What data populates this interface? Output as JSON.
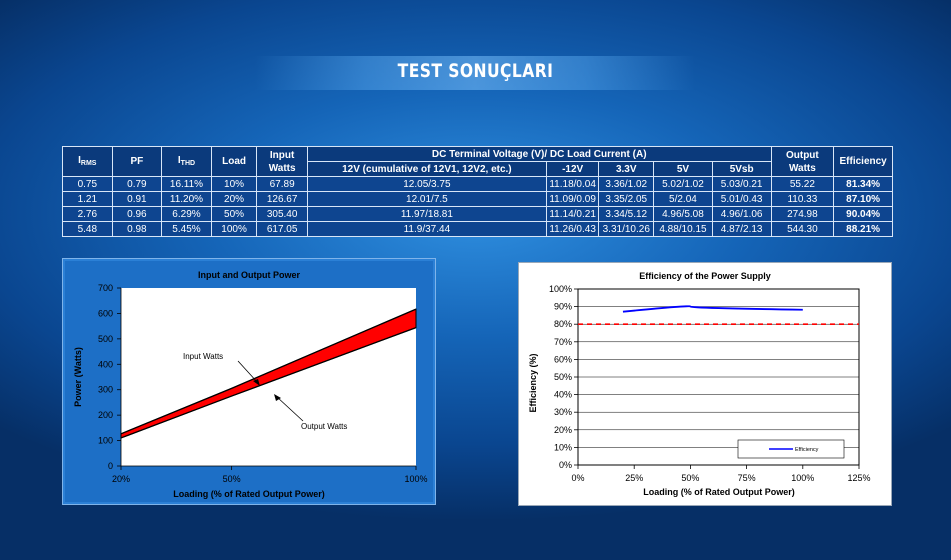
{
  "page": {
    "title": "TEST SONUÇLARI"
  },
  "table": {
    "headers": {
      "irms_main": "I",
      "irms_sub": "RMS",
      "pf": "PF",
      "ithd_main": "I",
      "ithd_sub": "THD",
      "load": "Load",
      "input_watts": "Input Watts",
      "dc_group": "DC Terminal Voltage (V)/ DC Load Current (A)",
      "v12": "12V (cumulative of 12V1, 12V2, etc.)",
      "vneg12": "-12V",
      "v33": "3.3V",
      "v5": "5V",
      "v5sb": "5Vsb",
      "output_watts": "Output Watts",
      "efficiency": "Efficiency"
    },
    "rows": [
      [
        "0.75",
        "0.79",
        "16.11%",
        "10%",
        "67.89",
        "12.05/3.75",
        "11.18/0.04",
        "3.36/1.02",
        "5.02/1.02",
        "5.03/0.21",
        "55.22",
        "81.34%"
      ],
      [
        "1.21",
        "0.91",
        "11.20%",
        "20%",
        "126.67",
        "12.01/7.5",
        "11.09/0.09",
        "3.35/2.05",
        "5/2.04",
        "5.01/0.43",
        "110.33",
        "87.10%"
      ],
      [
        "2.76",
        "0.96",
        "6.29%",
        "50%",
        "305.40",
        "11.97/18.81",
        "11.14/0.21",
        "3.34/5.12",
        "4.96/5.08",
        "4.96/1.06",
        "274.98",
        "90.04%"
      ],
      [
        "5.48",
        "0.98",
        "5.45%",
        "100%",
        "617.05",
        "11.9/37.44",
        "11.26/0.43",
        "3.31/10.26",
        "4.88/10.15",
        "4.87/2.13",
        "544.30",
        "88.21%"
      ]
    ]
  },
  "chart_data": [
    {
      "type": "area",
      "title": "Input and Output Power",
      "xlabel": "Loading (% of Rated Output Power)",
      "ylabel": "Power (Watts)",
      "x": [
        20,
        50,
        100
      ],
      "xticks": [
        "20%",
        "50%",
        "100%"
      ],
      "ylim": [
        0,
        700
      ],
      "yticks": [
        "0",
        "100",
        "200",
        "300",
        "400",
        "500",
        "600",
        "700"
      ],
      "series": [
        {
          "name": "Input Watts",
          "values": [
            126.67,
            305.4,
            617.05
          ]
        },
        {
          "name": "Output Watts",
          "values": [
            110.33,
            274.98,
            544.3
          ]
        }
      ],
      "annotations": [
        "Input Watts",
        "Output Watts"
      ],
      "fill_color": "#ff0000",
      "plot_background": "#ffffff"
    },
    {
      "type": "line",
      "title": "Efficiency of the Power Supply",
      "xlabel": "Loading (% of Rated Output Power)",
      "ylabel": "Efficiency (%)",
      "xlim": [
        0,
        125
      ],
      "xticks": [
        "0%",
        "25%",
        "50%",
        "75%",
        "100%",
        "125%"
      ],
      "ylim": [
        0,
        100
      ],
      "yticks": [
        "0%",
        "10%",
        "20%",
        "30%",
        "40%",
        "50%",
        "60%",
        "70%",
        "80%",
        "90%",
        "100%"
      ],
      "series": [
        {
          "name": "Efficiency",
          "x": [
            20,
            50,
            100
          ],
          "values": [
            87.1,
            90.04,
            88.21
          ],
          "color": "#0000ff"
        }
      ],
      "reference_line": {
        "y": 80,
        "color": "#ff0000",
        "style": "dashed"
      },
      "legend": "bottom-right"
    }
  ]
}
